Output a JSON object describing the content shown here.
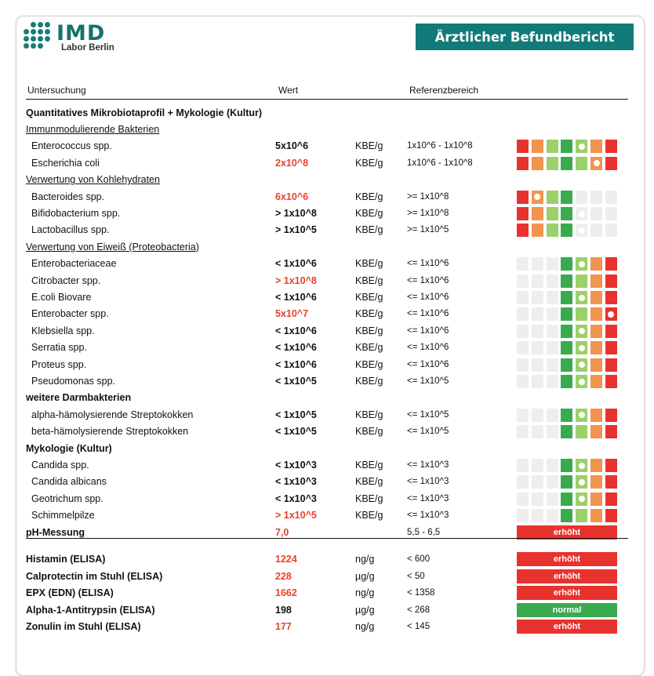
{
  "header": {
    "logo_text": "IMD",
    "logo_subtext": "Labor Berlin",
    "report_title": "Ärztlicher Befundbericht"
  },
  "columns": {
    "untersuchung": "Untersuchung",
    "wert": "Wert",
    "referenzbereich": "Referenzbereich"
  },
  "colors": {
    "red": "#e8322e",
    "orange": "#f0944e",
    "lightgreen": "#9bd06a",
    "green": "#3aaa4f",
    "empty": "#eeeeee",
    "value_red": "#e8412b",
    "brand_teal": "#137a7a"
  },
  "section_title": "Quantitatives Mikrobiotaprofil + Mykologie (Kultur)",
  "rows": [
    {
      "kind": "sub",
      "name": "Immunmodulierende Bakterien"
    },
    {
      "kind": "item",
      "name": "Enterococcus spp.",
      "value": "5x10^6",
      "red": false,
      "unit": "KBE/g",
      "ref": "1x10^6 - 1x10^8",
      "scale": "both",
      "marker": 4
    },
    {
      "kind": "item",
      "name": "Escherichia coli",
      "value": "2x10^8",
      "red": true,
      "unit": "KBE/g",
      "ref": "1x10^6 - 1x10^8",
      "scale": "both",
      "marker": 5
    },
    {
      "kind": "sub",
      "name": "Verwertung von Kohlehydraten"
    },
    {
      "kind": "item",
      "name": "Bacteroides spp.",
      "value": "6x10^6",
      "red": true,
      "unit": "KBE/g",
      "ref": ">= 1x10^8",
      "scale": "low",
      "marker": 1
    },
    {
      "kind": "item",
      "name": "Bifidobacterium spp.",
      "value": "> 1x10^8",
      "red": false,
      "unit": "KBE/g",
      "ref": ">= 1x10^8",
      "scale": "low",
      "marker": 4
    },
    {
      "kind": "item",
      "name": "Lactobacillus spp.",
      "value": "> 1x10^5",
      "red": false,
      "unit": "KBE/g",
      "ref": ">= 1x10^5",
      "scale": "low",
      "marker": 4
    },
    {
      "kind": "sub",
      "name": "Verwertung von Eiweiß (Proteobacteria)"
    },
    {
      "kind": "item",
      "name": "Enterobacteriaceae",
      "value": "< 1x10^6",
      "red": false,
      "unit": "KBE/g",
      "ref": "<= 1x10^6",
      "scale": "high",
      "marker": 4
    },
    {
      "kind": "item",
      "name": "Citrobacter spp.",
      "value": "> 1x10^8",
      "red": true,
      "unit": "KBE/g",
      "ref": "<= 1x10^6",
      "scale": "high",
      "marker": 7
    },
    {
      "kind": "item",
      "name": "E.coli Biovare",
      "value": "< 1x10^6",
      "red": false,
      "unit": "KBE/g",
      "ref": "<= 1x10^6",
      "scale": "high",
      "marker": 4
    },
    {
      "kind": "item",
      "name": "Enterobacter spp.",
      "value": "5x10^7",
      "red": true,
      "unit": "KBE/g",
      "ref": "<= 1x10^6",
      "scale": "high",
      "marker": 6
    },
    {
      "kind": "item",
      "name": "Klebsiella spp.",
      "value": "< 1x10^6",
      "red": false,
      "unit": "KBE/g",
      "ref": "<= 1x10^6",
      "scale": "high",
      "marker": 4
    },
    {
      "kind": "item",
      "name": "Serratia spp.",
      "value": "< 1x10^6",
      "red": false,
      "unit": "KBE/g",
      "ref": "<= 1x10^6",
      "scale": "high",
      "marker": 4
    },
    {
      "kind": "item",
      "name": "Proteus spp.",
      "value": "< 1x10^6",
      "red": false,
      "unit": "KBE/g",
      "ref": "<= 1x10^6",
      "scale": "high",
      "marker": 4
    },
    {
      "kind": "item",
      "name": "Pseudomonas spp.",
      "value": "< 1x10^5",
      "red": false,
      "unit": "KBE/g",
      "ref": "<= 1x10^5",
      "scale": "high",
      "marker": 4
    },
    {
      "kind": "sec",
      "name": "weitere Darmbakterien"
    },
    {
      "kind": "item",
      "name": "alpha-hämolysierende Streptokokken",
      "value": "< 1x10^5",
      "red": false,
      "unit": "KBE/g",
      "ref": "<= 1x10^5",
      "scale": "high",
      "marker": 4
    },
    {
      "kind": "item",
      "name": "beta-hämolysierende Streptokokken",
      "value": "< 1x10^5",
      "red": false,
      "unit": "KBE/g",
      "ref": "<= 1x10^5",
      "scale": "high",
      "marker": -1
    },
    {
      "kind": "sec",
      "name": "Mykologie (Kultur)"
    },
    {
      "kind": "item",
      "name": "Candida spp.",
      "value": "< 1x10^3",
      "red": false,
      "unit": "KBE/g",
      "ref": "<= 1x10^3",
      "scale": "high",
      "marker": 4
    },
    {
      "kind": "item",
      "name": "Candida albicans",
      "value": "< 1x10^3",
      "red": false,
      "unit": "KBE/g",
      "ref": "<= 1x10^3",
      "scale": "high",
      "marker": 4
    },
    {
      "kind": "item",
      "name": "Geotrichum spp.",
      "value": "< 1x10^3",
      "red": false,
      "unit": "KBE/g",
      "ref": "<= 1x10^3",
      "scale": "high",
      "marker": 4
    },
    {
      "kind": "item",
      "name": "Schimmelpilze",
      "value": "> 1x10^5",
      "red": true,
      "unit": "KBE/g",
      "ref": "<= 1x10^3",
      "scale": "high",
      "marker": 7
    },
    {
      "kind": "badge",
      "name": "pH-Messung",
      "value": "7,0",
      "red": true,
      "unit": "",
      "ref": "5,5 - 6,5",
      "status": "erhöht",
      "status_color": "red"
    }
  ],
  "lab_rows": [
    {
      "name": "Histamin (ELISA)",
      "value": "1224",
      "red": true,
      "unit": "ng/g",
      "ref": "< 600",
      "status": "erhöht",
      "status_color": "red"
    },
    {
      "name": "Calprotectin im Stuhl (ELISA)",
      "value": "228",
      "red": true,
      "unit": "µg/g",
      "ref": "< 50",
      "status": "erhöht",
      "status_color": "red"
    },
    {
      "name": "EPX (EDN) (ELISA)",
      "value": "1662",
      "red": true,
      "unit": "ng/g",
      "ref": "< 1358",
      "status": "erhöht",
      "status_color": "red"
    },
    {
      "name": "Alpha-1-Antitrypsin (ELISA)",
      "value": "198",
      "red": false,
      "unit": "µg/g",
      "ref": "< 268",
      "status": "normal",
      "status_color": "green"
    },
    {
      "name": "Zonulin im Stuhl (ELISA)",
      "value": "177",
      "red": true,
      "unit": "ng/g",
      "ref": "< 145",
      "status": "erhöht",
      "status_color": "red"
    }
  ]
}
